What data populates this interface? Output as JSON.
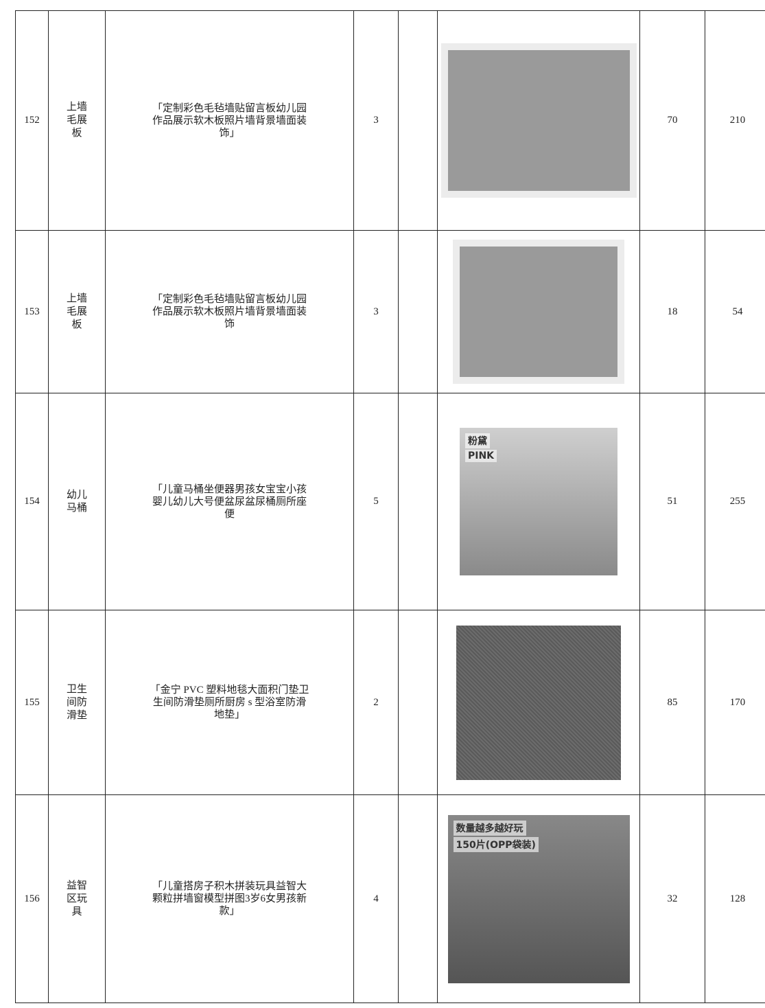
{
  "table": {
    "rows": [
      {
        "index": "152",
        "name": "上墙毛展板",
        "description": "「定制彩色毛毡墙贴留言板幼儿园作品展示软木板照片墙背景墙面装饰」",
        "quantity": "3",
        "unit_price": "70",
        "total": "210",
        "image_text": []
      },
      {
        "index": "153",
        "name": "上墙毛展板",
        "description": "「定制彩色毛毡墙贴留言板幼儿园作品展示软木板照片墙背景墙面装饰",
        "quantity": "3",
        "unit_price": "18",
        "total": "54",
        "image_text": []
      },
      {
        "index": "154",
        "name": "幼儿马桶",
        "description": "「儿童马桶坐便器男孩女宝宝小孩婴儿幼儿大号便盆尿盆尿桶厕所座便",
        "quantity": "5",
        "unit_price": "51",
        "total": "255",
        "image_text": [
          "粉黛",
          "PINK"
        ]
      },
      {
        "index": "155",
        "name": "卫生间防滑垫",
        "description": "「金宁 PVC 塑料地毯大面积门垫卫生间防滑垫厕所厨房 s 型浴室防滑地垫」",
        "quantity": "2",
        "unit_price": "85",
        "total": "170",
        "image_text": []
      },
      {
        "index": "156",
        "name": "益智区玩具",
        "description": "「儿童搭房子积木拼装玩具益智大颗粒拼墙窗模型拼图3岁6女男孩新款」",
        "quantity": "4",
        "unit_price": "32",
        "total": "128",
        "image_text": [
          "数量越多越好玩",
          "150片(OPP袋装)"
        ]
      }
    ]
  }
}
